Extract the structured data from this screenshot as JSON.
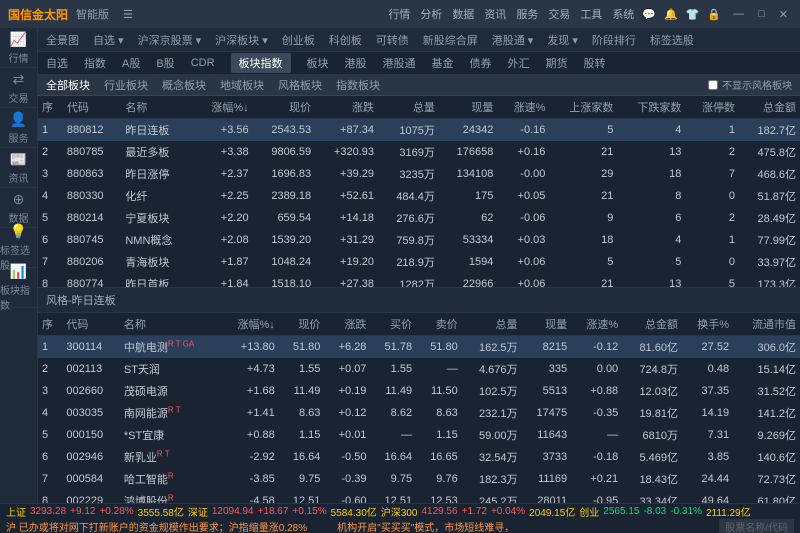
{
  "titlebar": {
    "logo": "国信金太阳",
    "version": "智能版",
    "menu": [
      "行情",
      "分析",
      "数据",
      "资讯",
      "服务",
      "交易",
      "工具",
      "系统"
    ]
  },
  "sidebar": [
    {
      "icon": "📈",
      "label": "行情"
    },
    {
      "icon": "⇄",
      "label": "交易"
    },
    {
      "icon": "👤",
      "label": "服务"
    },
    {
      "icon": "📰",
      "label": "资讯"
    },
    {
      "icon": "⊕",
      "label": "数据"
    },
    {
      "icon": "💡",
      "label": "标签选股"
    },
    {
      "icon": "📊",
      "label": "板块指数"
    }
  ],
  "tabbar1": [
    "全景图",
    "自选 ▾",
    "沪深京股票 ▾",
    "沪深板块 ▾",
    "创业板",
    "科创板",
    "可转债",
    "新股综合屏",
    "港股通 ▾",
    "发现 ▾",
    "阶段排行",
    "标签选股"
  ],
  "tabbar2": [
    "自选",
    "指数",
    "A股",
    "B股",
    "CDR",
    "板块指数",
    "板块",
    "港股",
    "港股通",
    "基金",
    "债券",
    "外汇",
    "期货",
    "股转"
  ],
  "tabbar2_active": "板块指数",
  "tabbar3": [
    "全部板块",
    "行业板块",
    "概念板块",
    "地域板块",
    "风格板块",
    "指数板块"
  ],
  "tabbar3_active": "全部板块",
  "hide_style_checkbox": "不显示风格板块",
  "table1": {
    "headers": [
      "序",
      "代码",
      "名称",
      "涨幅%↓",
      "现价",
      "涨跌",
      "总量",
      "现量",
      "涨速%",
      "上涨家数",
      "下跌家数",
      "涨停数",
      "总金额"
    ],
    "rows": [
      {
        "seq": "1",
        "code": "880812",
        "name": "昨日连板",
        "pct": "+3.56",
        "price": "2543.53",
        "chg": "+87.34",
        "vol": "1075万",
        "cur": "24342",
        "spd": "-0.16",
        "up": "5",
        "dn": "4",
        "lmt": "1",
        "amt": "182.7亿",
        "selected": true
      },
      {
        "seq": "2",
        "code": "880785",
        "name": "最近多板",
        "pct": "+3.38",
        "price": "9806.59",
        "chg": "+320.93",
        "vol": "3169万",
        "cur": "176658",
        "spd": "+0.16",
        "up": "21",
        "dn": "13",
        "lmt": "2",
        "amt": "475.8亿"
      },
      {
        "seq": "3",
        "code": "880863",
        "name": "昨日涨停",
        "pct": "+2.37",
        "price": "1696.83",
        "chg": "+39.29",
        "vol": "3235万",
        "cur": "134108",
        "spd": "-0.00",
        "up": "29",
        "dn": "18",
        "lmt": "7",
        "amt": "468.6亿"
      },
      {
        "seq": "4",
        "code": "880330",
        "name": "化纤",
        "pct": "+2.25",
        "price": "2389.18",
        "chg": "+52.61",
        "vol": "484.4万",
        "cur": "175",
        "spd": "+0.05",
        "up": "21",
        "dn": "8",
        "lmt": "0",
        "amt": "51.87亿"
      },
      {
        "seq": "5",
        "code": "880214",
        "name": "宁夏板块",
        "pct": "+2.20",
        "price": "659.54",
        "chg": "+14.18",
        "vol": "276.6万",
        "cur": "62",
        "spd": "-0.06",
        "up": "9",
        "dn": "6",
        "lmt": "2",
        "amt": "28.49亿"
      },
      {
        "seq": "6",
        "code": "880745",
        "name": "NMN概念",
        "pct": "+2.08",
        "price": "1539.20",
        "chg": "+31.29",
        "vol": "759.8万",
        "cur": "53334",
        "spd": "+0.03",
        "up": "18",
        "dn": "4",
        "lmt": "1",
        "amt": "77.99亿"
      },
      {
        "seq": "7",
        "code": "880206",
        "name": "青海板块",
        "pct": "+1.87",
        "price": "1048.24",
        "chg": "+19.20",
        "vol": "218.9万",
        "cur": "1594",
        "spd": "+0.06",
        "up": "5",
        "dn": "5",
        "lmt": "0",
        "amt": "33.97亿"
      },
      {
        "seq": "8",
        "code": "880774",
        "name": "昨日首板",
        "pct": "+1.84",
        "price": "1518.10",
        "chg": "+27.38",
        "vol": "1282万",
        "cur": "22966",
        "spd": "+0.06",
        "up": "21",
        "dn": "13",
        "lmt": "5",
        "amt": "173.3亿"
      },
      {
        "seq": "9",
        "code": "880770",
        "name": "昨日上榜",
        "pct": "+1.71",
        "price": "1682.63",
        "chg": "+28.22",
        "vol": "3032万",
        "cur": "1372",
        "spd": "-0.04",
        "up": "22",
        "dn": "25",
        "lmt": "2",
        "amt": "495.0亿"
      }
    ]
  },
  "section2_title": "风格-昨日连板",
  "table2": {
    "headers": [
      "序",
      "代码",
      "名称",
      "涨幅%↓",
      "现价",
      "涨跌",
      "买价",
      "卖价",
      "总量",
      "现量",
      "涨速%",
      "总金额",
      "换手%",
      "流通市值"
    ],
    "rows": [
      {
        "seq": "1",
        "code": "300114",
        "name": "中航电测",
        "badge": "R T GA",
        "pct": "+13.80",
        "price": "51.80",
        "chg": "+6.28",
        "buy": "51.78",
        "sell": "51.80",
        "vol": "162.5万",
        "cur": "8215",
        "spd": "-0.12",
        "amt": "81.60亿",
        "turn": "27.52",
        "mkt": "306.0亿",
        "selected": true
      },
      {
        "seq": "2",
        "code": "002113",
        "name": "ST天润",
        "pct": "+4.73",
        "price": "1.55",
        "chg": "+0.07",
        "buy": "1.55",
        "sell": "—",
        "vol": "4.676万",
        "cur": "335",
        "spd": "0.00",
        "amt": "724.8万",
        "turn": "0.48",
        "mkt": "15.14亿"
      },
      {
        "seq": "3",
        "code": "002660",
        "name": "茂硕电源",
        "pct": "+1.68",
        "price": "11.49",
        "chg": "+0.19",
        "buy": "11.49",
        "sell": "11.50",
        "vol": "102.5万",
        "cur": "5513",
        "spd": "+0.88",
        "amt": "12.03亿",
        "turn": "37.35",
        "mkt": "31.52亿"
      },
      {
        "seq": "4",
        "code": "003035",
        "name": "南网能源",
        "badge": "R T",
        "pct": "+1.41",
        "price": "8.63",
        "chg": "+0.12",
        "buy": "8.62",
        "sell": "8.63",
        "vol": "232.1万",
        "cur": "17475",
        "spd": "-0.35",
        "amt": "19.81亿",
        "turn": "14.19",
        "mkt": "141.2亿"
      },
      {
        "seq": "5",
        "code": "000150",
        "name": "*ST宜康",
        "pct": "+0.88",
        "price": "1.15",
        "chg": "+0.01",
        "buy": "—",
        "sell": "1.15",
        "vol": "59.00万",
        "cur": "11643",
        "spd": "—",
        "amt": "6810万",
        "turn": "7.31",
        "mkt": "9.269亿"
      },
      {
        "seq": "6",
        "code": "002946",
        "name": "新乳业",
        "badge": "R T",
        "pct": "-2.92",
        "price": "16.64",
        "chg": "-0.50",
        "buy": "16.64",
        "sell": "16.65",
        "vol": "32.54万",
        "cur": "3733",
        "spd": "-0.18",
        "amt": "5.469亿",
        "turn": "3.85",
        "mkt": "140.6亿"
      },
      {
        "seq": "7",
        "code": "000584",
        "name": "哈工智能",
        "badge": "R",
        "pct": "-3.85",
        "price": "9.75",
        "chg": "-0.39",
        "buy": "9.75",
        "sell": "9.76",
        "vol": "182.3万",
        "cur": "11169",
        "spd": "+0.21",
        "amt": "18.43亿",
        "turn": "24.44",
        "mkt": "72.73亿"
      },
      {
        "seq": "8",
        "code": "002229",
        "name": "鸿博股份",
        "badge": "R",
        "pct": "-4.58",
        "price": "12.51",
        "chg": "-0.60",
        "buy": "12.51",
        "sell": "12.53",
        "vol": "245.2万",
        "cur": "28011",
        "spd": "-0.95",
        "amt": "33.34亿",
        "turn": "49.64",
        "mkt": "61.80亿"
      }
    ]
  },
  "status": {
    "sh": {
      "label": "上证",
      "val": "3293.28",
      "chg": "+9.12",
      "pct": "+0.28%",
      "amt": "3555.58亿"
    },
    "sz": {
      "label": "深证",
      "val": "12094.94",
      "chg": "+18.67",
      "pct": "+0.15%",
      "amt": "5584.30亿"
    },
    "hs300": {
      "label": "沪深300",
      "val": "4129.56",
      "chg": "+1.72",
      "pct": "+0.04%",
      "amt": "2049.15亿"
    },
    "cy": {
      "label": "创业",
      "val": "2565.15",
      "chg": "-8.03",
      "pct": "-0.31%",
      "amt": "2111.29亿"
    },
    "line2": "沪 已办或将对网下打新账户的资金规模作出要求；沪指缩量涨0.28%",
    "line2b": "机构开启\"买买买\"模式，市场短线难寻，",
    "search_ph": "股票名称/代码"
  }
}
